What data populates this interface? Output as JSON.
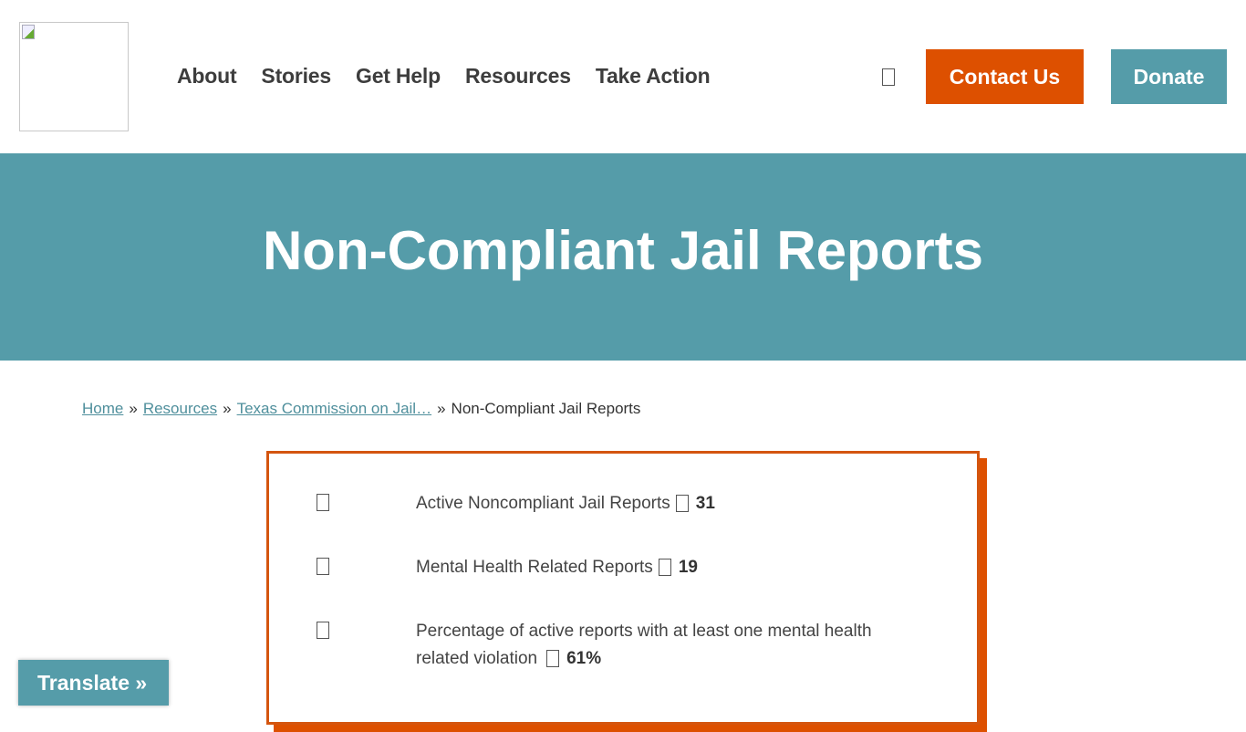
{
  "header": {
    "logo_alt": "",
    "nav": [
      "About",
      "Stories",
      "Get Help",
      "Resources",
      "Take Action"
    ],
    "search_icon": "search-icon",
    "contact_label": "Contact Us",
    "donate_label": "Donate"
  },
  "hero": {
    "title": "Non-Compliant Jail Reports"
  },
  "breadcrumb": {
    "items": [
      "Home",
      "Resources",
      "Texas Commission on Jail…"
    ],
    "separator": "»",
    "current": "Non-Compliant Jail Reports"
  },
  "stats": [
    {
      "label": "Active Noncompliant Jail Reports",
      "value": "31"
    },
    {
      "label": "Mental Health Related Reports",
      "value": "19"
    },
    {
      "label": "Percentage of active reports with at least one mental health related violation",
      "value": "61%"
    }
  ],
  "translate": {
    "label": "Translate »"
  },
  "colors": {
    "accent_orange": "#dd5000",
    "teal": "#559ca9"
  }
}
